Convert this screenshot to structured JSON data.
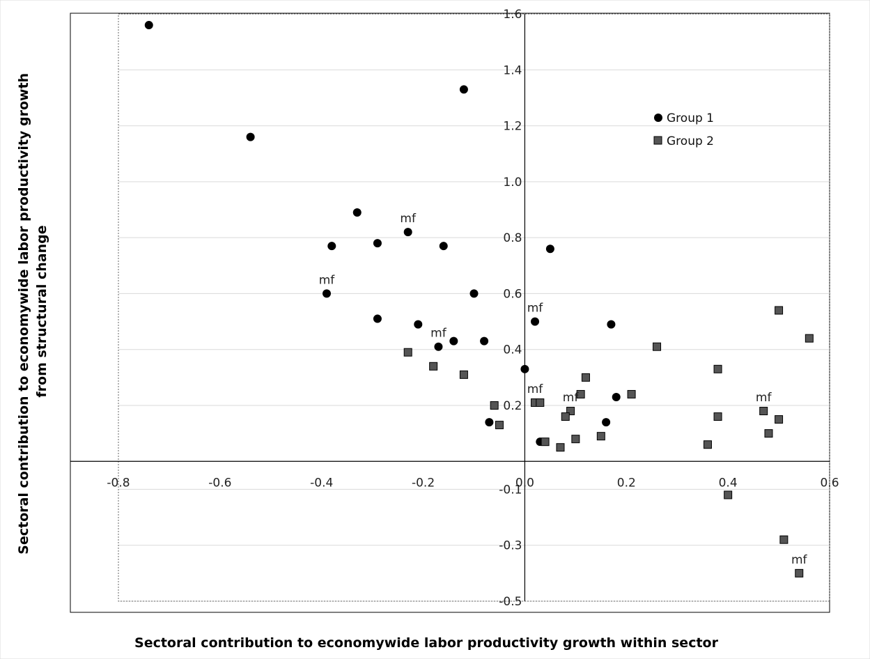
{
  "chart_data": {
    "type": "scatter",
    "title": "",
    "xlabel": "Sectoral contribution to economywide labor productivity growth within sector",
    "ylabel": [
      "Sectoral contribution to economywide labor productivity growth",
      "from structural change"
    ],
    "xlim": [
      -0.8,
      0.6
    ],
    "ylim": [
      -0.5,
      1.6
    ],
    "xticks": [
      -0.8,
      -0.6,
      -0.4,
      -0.2,
      0.0,
      0.2,
      0.4,
      0.6
    ],
    "xtick_labels": [
      "-0.8",
      "-0.6",
      "-0.4",
      "-0.2",
      "0.0",
      "0.2",
      "0.4",
      "0.6"
    ],
    "yticks": [
      -0.5,
      -0.3,
      -0.1,
      0.2,
      0.4,
      0.6,
      0.8,
      1.0,
      1.2,
      1.4,
      1.6
    ],
    "ytick_labels": [
      "-0.5",
      "-0.3",
      "-0.1",
      "0.2",
      "0.4",
      "0.6",
      "0.8",
      "1.0",
      "1.2",
      "1.4",
      "1.6"
    ],
    "grid": "horizontal",
    "legend_position": "upper-right",
    "series": [
      {
        "name": "Group 1",
        "marker": "circle",
        "color": "#000000",
        "points": [
          [
            -0.74,
            1.56
          ],
          [
            -0.54,
            1.16
          ],
          [
            -0.12,
            1.33
          ],
          [
            -0.33,
            0.89
          ],
          [
            -0.23,
            0.82
          ],
          [
            -0.29,
            0.78
          ],
          [
            -0.38,
            0.77
          ],
          [
            -0.16,
            0.77
          ],
          [
            0.05,
            0.76
          ],
          [
            -0.1,
            0.6
          ],
          [
            -0.39,
            0.6
          ],
          [
            -0.29,
            0.51
          ],
          [
            -0.21,
            0.49
          ],
          [
            0.02,
            0.5
          ],
          [
            0.17,
            0.49
          ],
          [
            -0.17,
            0.41
          ],
          [
            -0.14,
            0.43
          ],
          [
            -0.08,
            0.43
          ],
          [
            0.0,
            0.33
          ],
          [
            0.18,
            0.23
          ],
          [
            -0.07,
            0.14
          ],
          [
            0.16,
            0.14
          ],
          [
            0.03,
            0.07
          ]
        ]
      },
      {
        "name": "Group 2",
        "marker": "square",
        "color": "#555555",
        "points": [
          [
            -0.23,
            0.39
          ],
          [
            -0.18,
            0.34
          ],
          [
            -0.12,
            0.31
          ],
          [
            0.12,
            0.3
          ],
          [
            0.26,
            0.41
          ],
          [
            0.38,
            0.33
          ],
          [
            0.5,
            0.54
          ],
          [
            0.56,
            0.44
          ],
          [
            0.11,
            0.24
          ],
          [
            0.21,
            0.24
          ],
          [
            0.02,
            0.21
          ],
          [
            0.03,
            0.21
          ],
          [
            0.09,
            0.18
          ],
          [
            0.08,
            0.16
          ],
          [
            0.38,
            0.16
          ],
          [
            0.47,
            0.18
          ],
          [
            0.5,
            0.15
          ],
          [
            -0.06,
            0.2
          ],
          [
            -0.05,
            0.13
          ],
          [
            0.48,
            0.1
          ],
          [
            0.04,
            0.07
          ],
          [
            0.1,
            0.08
          ],
          [
            0.15,
            0.09
          ],
          [
            0.36,
            0.06
          ],
          [
            0.07,
            0.05
          ],
          [
            0.4,
            -0.12
          ],
          [
            0.51,
            -0.28
          ],
          [
            0.54,
            -0.4
          ]
        ]
      }
    ],
    "annotations": [
      {
        "text": "mf",
        "x": -0.23,
        "y": 0.82
      },
      {
        "text": "mf",
        "x": -0.39,
        "y": 0.6
      },
      {
        "text": "mf",
        "x": 0.02,
        "y": 0.5
      },
      {
        "text": "mf",
        "x": -0.17,
        "y": 0.41
      },
      {
        "text": "mf",
        "x": 0.02,
        "y": 0.21
      },
      {
        "text": "mf",
        "x": 0.09,
        "y": 0.18
      },
      {
        "text": "mf",
        "x": 0.47,
        "y": 0.18
      },
      {
        "text": "mf",
        "x": 0.54,
        "y": -0.4
      }
    ]
  }
}
